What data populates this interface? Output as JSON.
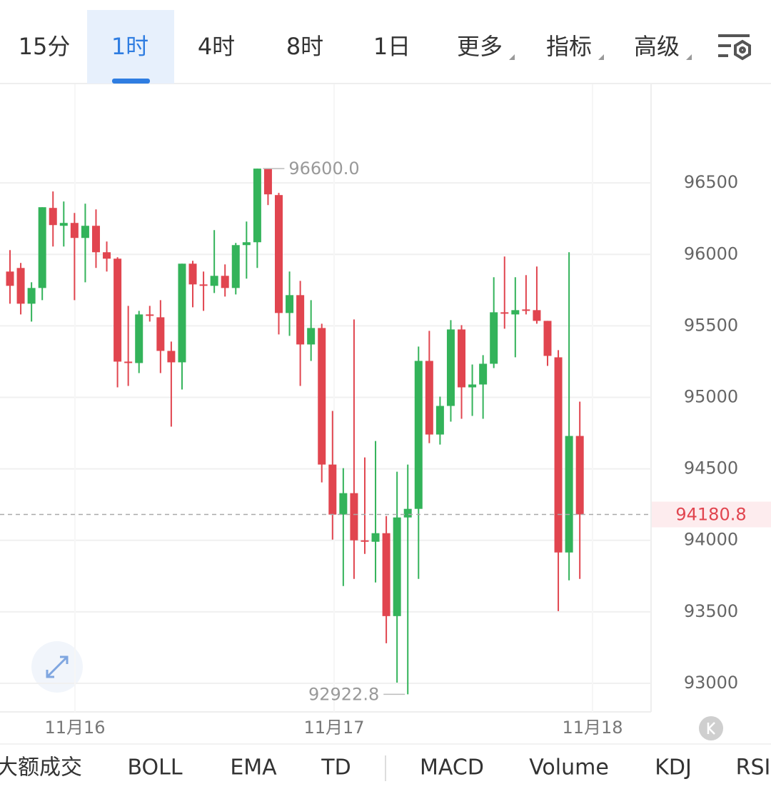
{
  "tabs": {
    "items": [
      "15分",
      "1时",
      "4时",
      "8时",
      "1日",
      "更多",
      "指标",
      "高级"
    ],
    "selected": 1
  },
  "chart_data": {
    "type": "candlestick",
    "up_color": "#33b35a",
    "down_color": "#e1454f",
    "candles": {
      "open": [
        95880,
        95905,
        95655,
        95765,
        96325,
        96200,
        96220,
        96115,
        96200,
        96015,
        95970,
        95250,
        95240,
        95580,
        95560,
        95325,
        95245,
        95935,
        95790,
        95780,
        95850,
        95765,
        96065,
        96085,
        96600,
        96415,
        95590,
        95715,
        95370,
        95485,
        94530,
        94180,
        94330,
        94000,
        93990,
        94050,
        93470,
        94160,
        94220,
        95255,
        94740,
        94940,
        95475,
        95070,
        95090,
        95235,
        95595,
        95580,
        95615,
        95610,
        95535,
        95280,
        93915,
        94730
      ],
      "high": [
        96030,
        95940,
        95805,
        96330,
        96440,
        96370,
        96290,
        96355,
        96315,
        96090,
        95980,
        95640,
        95605,
        95640,
        95680,
        95390,
        95935,
        95955,
        95880,
        96170,
        95930,
        96080,
        96230,
        96600,
        96600,
        96430,
        95880,
        95815,
        95680,
        95515,
        94905,
        94505,
        95545,
        94580,
        94695,
        94170,
        94480,
        94530,
        95355,
        95465,
        95005,
        95540,
        95505,
        95230,
        95295,
        95840,
        95985,
        95840,
        95855,
        95915,
        95535,
        95330,
        96015,
        94970
      ],
      "low": [
        95655,
        95580,
        95530,
        95680,
        96055,
        96055,
        95680,
        95805,
        95905,
        95880,
        95070,
        95080,
        95170,
        95530,
        95170,
        94795,
        95055,
        95630,
        95605,
        95730,
        95705,
        95720,
        95830,
        95905,
        96345,
        95440,
        95430,
        95080,
        95255,
        94405,
        94005,
        93680,
        93730,
        93905,
        93705,
        93280,
        93005,
        92922.8,
        93730,
        94680,
        94670,
        94830,
        94850,
        94870,
        94850,
        95205,
        95480,
        95280,
        95580,
        95515,
        95220,
        93505,
        93720,
        93730
      ],
      "close": [
        95780,
        95655,
        95765,
        96330,
        96205,
        96220,
        96115,
        96200,
        96015,
        95970,
        95250,
        95240,
        95580,
        95570,
        95325,
        95245,
        95935,
        95790,
        95780,
        95850,
        95765,
        96065,
        96085,
        96600,
        96420,
        95590,
        95715,
        95370,
        95485,
        94530,
        94180,
        94330,
        94000,
        93990,
        94050,
        93470,
        94160,
        94220,
        95255,
        94740,
        94940,
        95475,
        95070,
        95090,
        95235,
        95595,
        95585,
        95610,
        95605,
        95535,
        95290,
        93915,
        94730,
        94180.8
      ]
    },
    "ylim": [
      92800,
      97190
    ],
    "yticks": [
      93000,
      93500,
      94000,
      94500,
      95000,
      95500,
      96000,
      96500
    ],
    "grid": true,
    "x_labels": [
      "11月16",
      "11月17",
      "11月18"
    ],
    "annotations": {
      "high": {
        "value": 96600,
        "label": "96600.0"
      },
      "low": {
        "value": 92922.8,
        "label": "92922.8"
      }
    },
    "last_price": {
      "value": 94180.8,
      "label": "94180.8"
    }
  },
  "indicators": [
    "大额成交",
    "BOLL",
    "EMA",
    "TD",
    "MACD",
    "Volume",
    "KDJ",
    "RSI"
  ]
}
